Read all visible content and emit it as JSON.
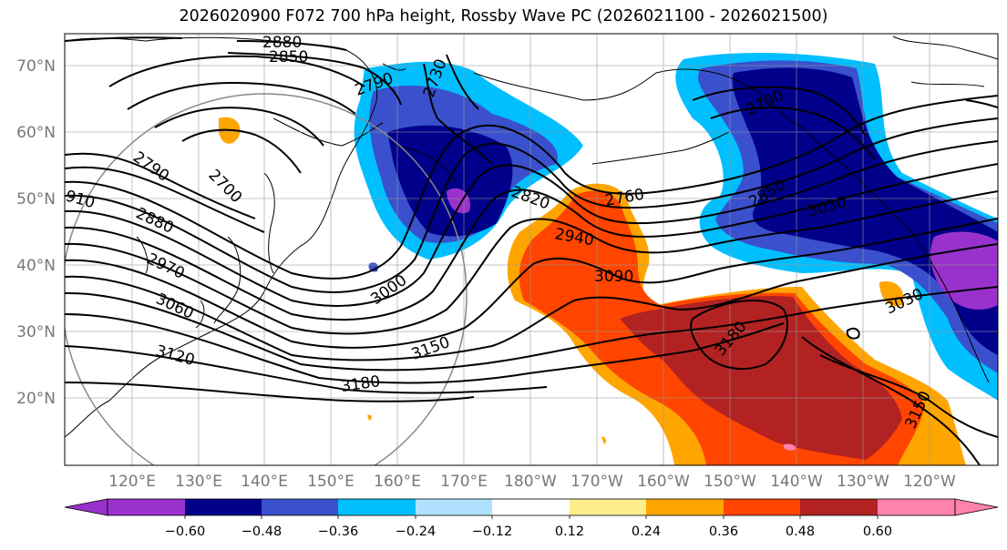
{
  "title": "2026020900 F072 700 hPa height, Rossby Wave PC (2026021100 - 2026021500)",
  "latitude_labels": [
    "70°N",
    "60°N",
    "50°N",
    "40°N",
    "30°N",
    "20°N"
  ],
  "longitude_labels": [
    "120°E",
    "130°E",
    "140°E",
    "150°E",
    "160°E",
    "170°E",
    "180°W",
    "170°W",
    "160°W",
    "150°W",
    "140°W",
    "130°W",
    "120°W"
  ],
  "colorbar": {
    "colors": [
      "#9932cc",
      "#00008b",
      "#3a50cc",
      "#00bfff",
      "#b0e2ff",
      "#ffffff",
      "#ffec8b",
      "#ffa500",
      "#ff4500",
      "#b22222",
      "#ff82ab"
    ],
    "tick_labels": [
      "−0.60",
      "−0.48",
      "−0.36",
      "−0.24",
      "−0.12",
      "0.12",
      "0.24",
      "0.36",
      "0.48",
      "0.60"
    ]
  },
  "contour_labels": [
    "2880",
    "2850",
    "2790",
    "2730",
    "2700",
    "2820",
    "2760",
    "2940",
    "3090",
    "2850",
    "3030",
    "2790",
    "2700",
    "2880",
    "2970",
    "3060",
    "910",
    "3000",
    "3120",
    "3150",
    "3180",
    "3180",
    "3030",
    "3150"
  ]
}
